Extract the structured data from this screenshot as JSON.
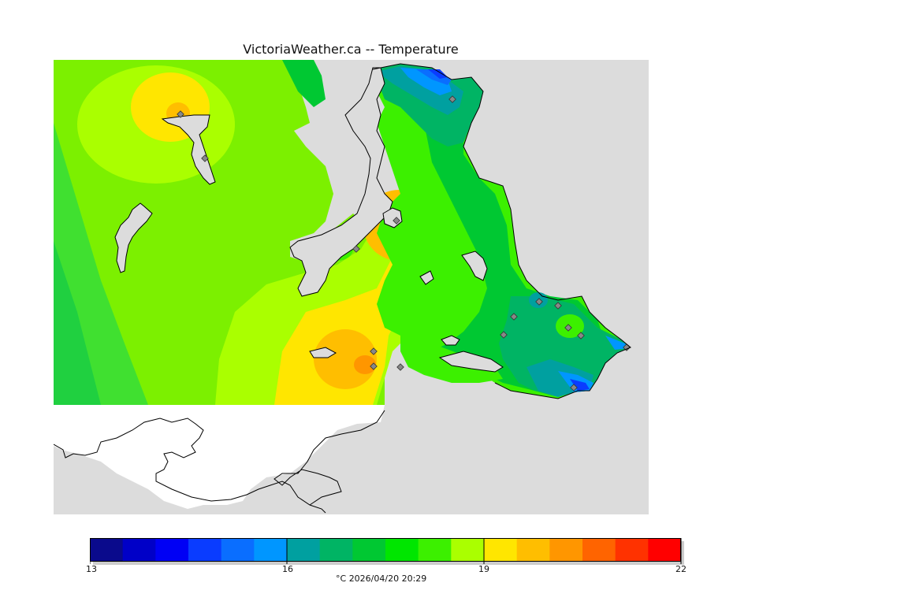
{
  "title": "VictoriaWeather.ca -- Temperature",
  "legend": {
    "min": 13,
    "max": 22,
    "ticks": [
      "13",
      "16",
      "19",
      "22"
    ],
    "unit": "°C",
    "timestamp": "2026/04/20 20:29",
    "colors": [
      "#0a0a8c",
      "#0000c8",
      "#0000f5",
      "#0a3cff",
      "#0a6eff",
      "#0096ff",
      "#00a0a0",
      "#00b464",
      "#00c832",
      "#00e600",
      "#3cf000",
      "#aaff00",
      "#ffe600",
      "#ffbe00",
      "#ff9600",
      "#ff6400",
      "#ff3200",
      "#ff0000"
    ]
  },
  "map": {
    "land_color": "#7fe600",
    "water_color": "#dcdcdc",
    "us_land_color": "#ffffff",
    "station_color": "#888888"
  }
}
